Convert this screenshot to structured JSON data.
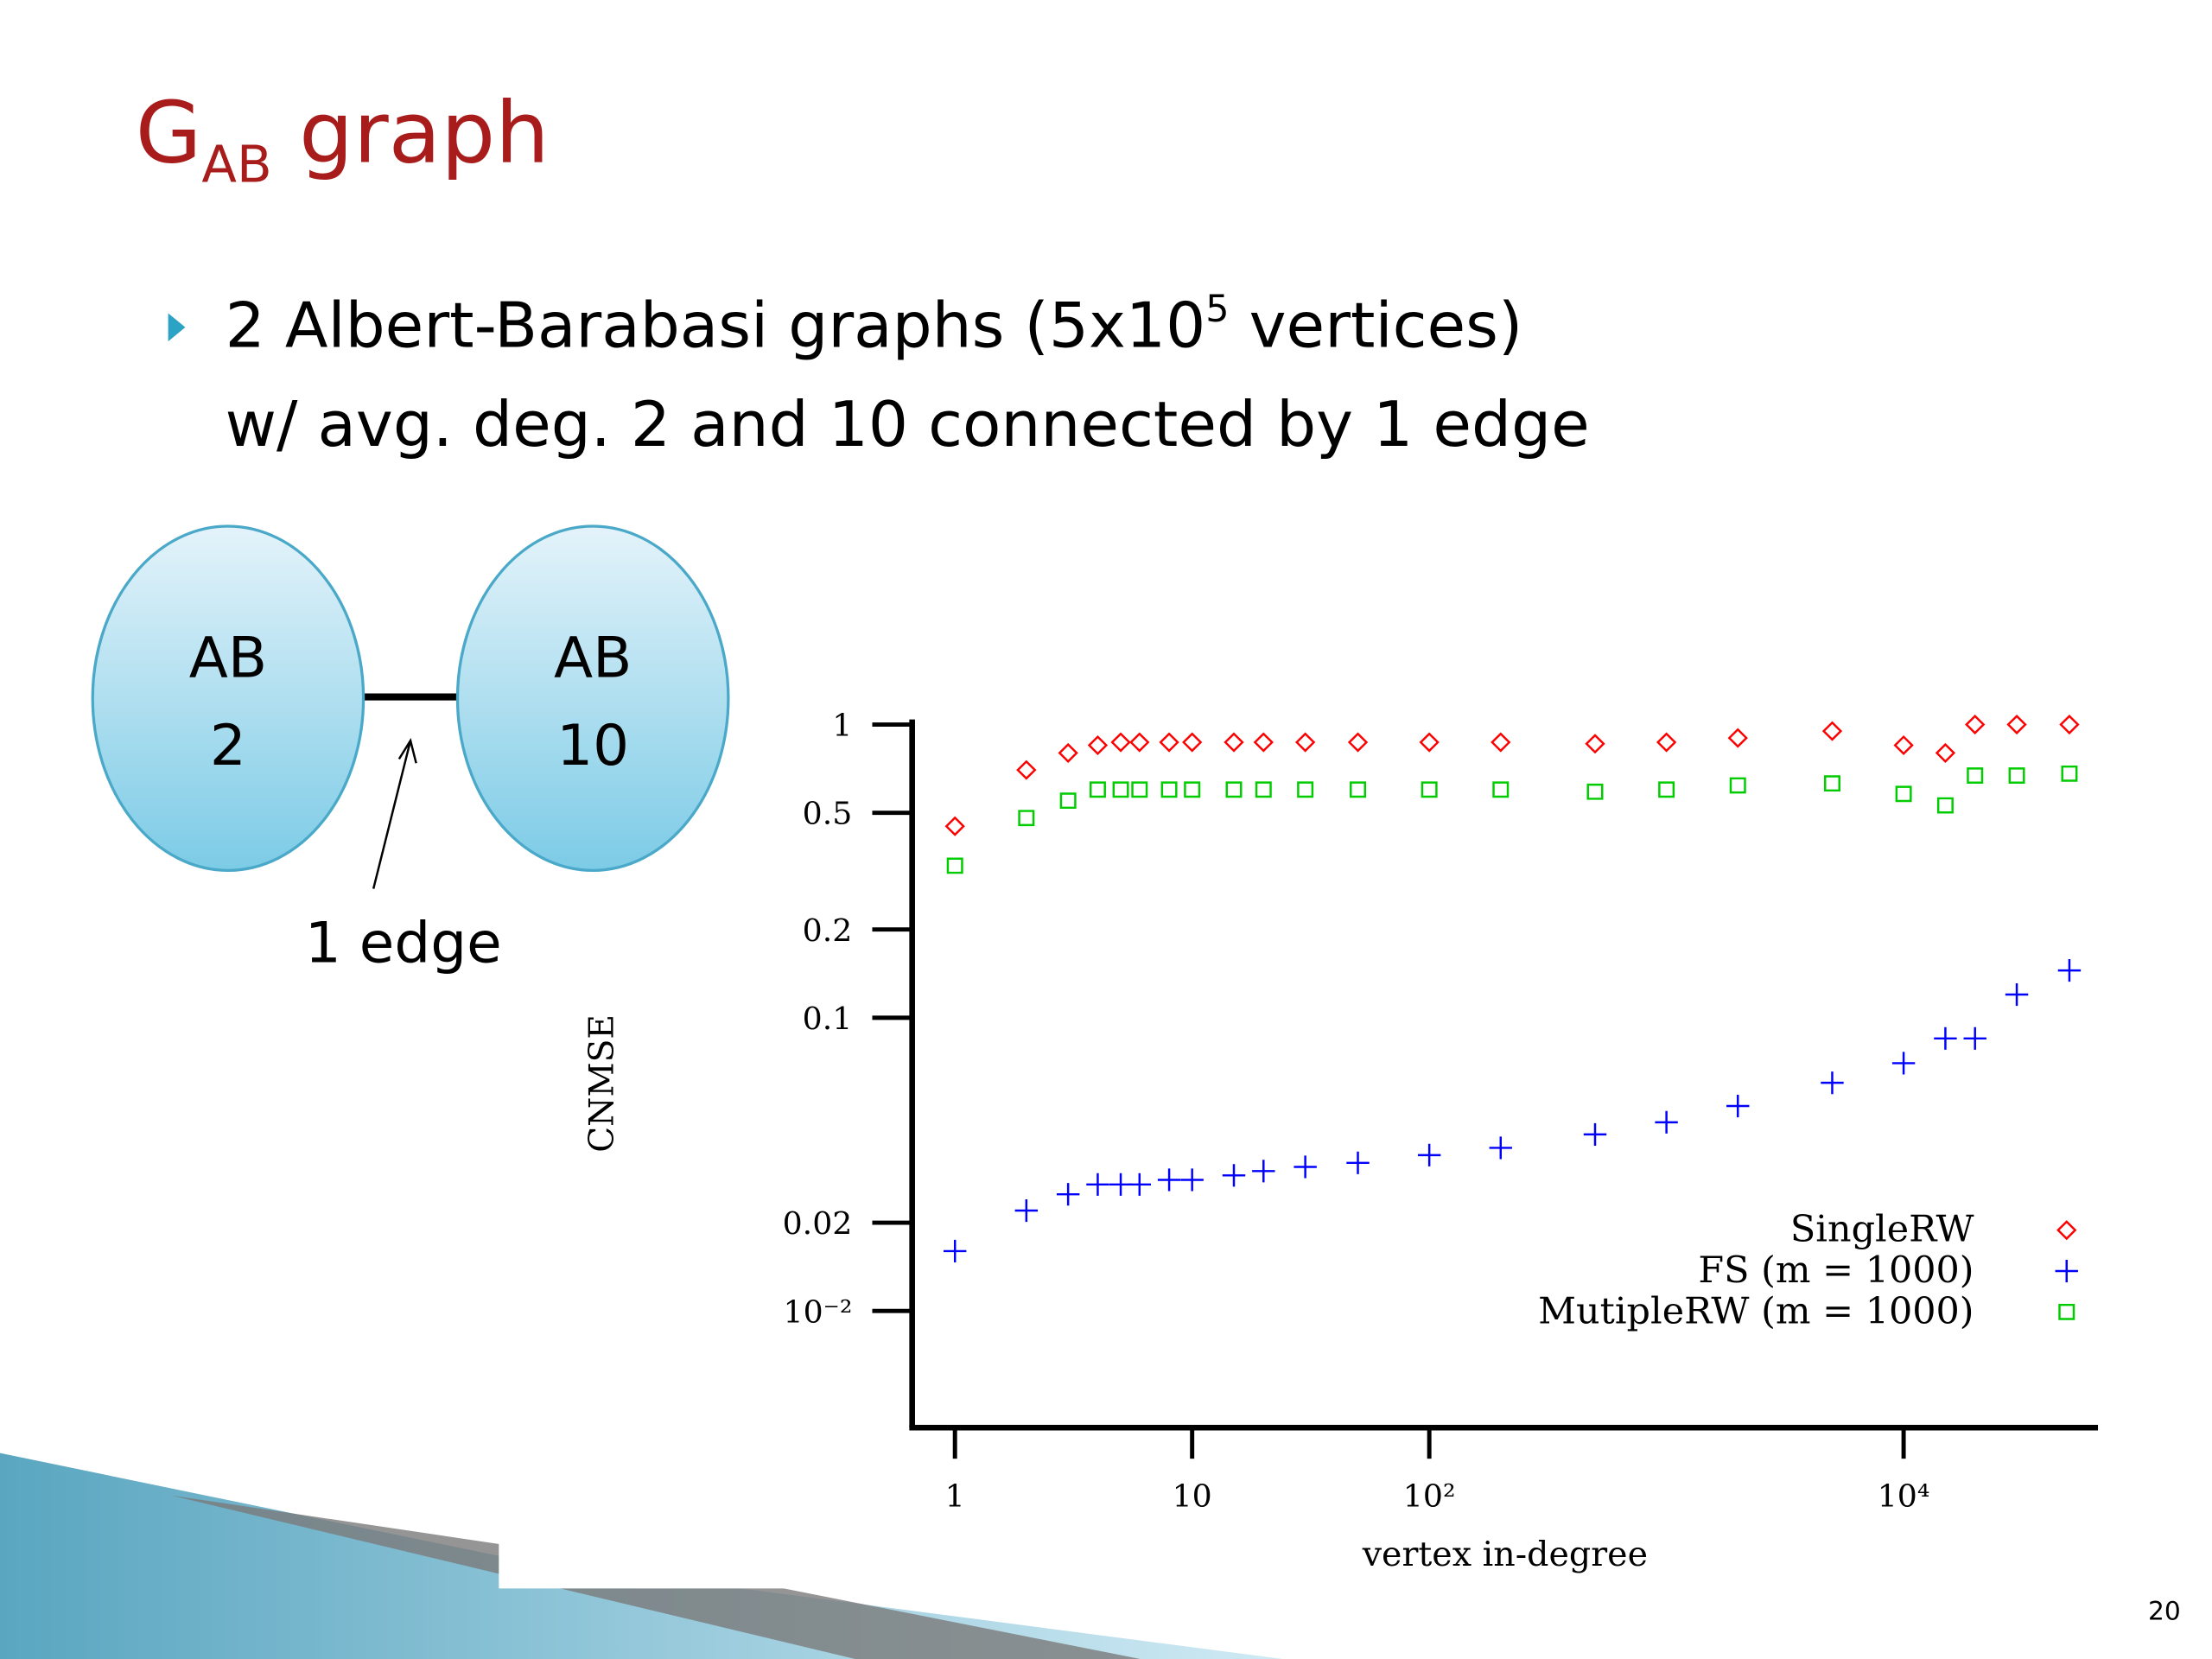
{
  "slide": {
    "title": {
      "main": "G",
      "subscript": "AB",
      "rest": " graph"
    },
    "bullet": {
      "line1_start": "2 Albert-Barabasi graphs (5x10",
      "line1_sup": "5",
      "line1_end": " vertices)",
      "line2": "w/ avg. deg. 2 and 10 connected by 1 edge"
    },
    "diagram": {
      "left": [
        "AB",
        "2"
      ],
      "right": [
        "AB",
        "10"
      ],
      "edge_label": "1 edge"
    },
    "page_number": "20"
  },
  "chart_data": {
    "type": "scatter",
    "x_label": "vertex in-degree",
    "y_label": "CNMSE",
    "x": [
      1,
      2,
      3,
      4,
      5,
      6,
      8,
      10,
      15,
      20,
      30,
      50,
      100,
      200,
      500,
      1000,
      2000,
      5000,
      10000,
      15000,
      20000,
      30000,
      50000
    ],
    "series": [
      {
        "name": "SingleRW",
        "color": "#ff0000",
        "marker": "diamond",
        "values": [
          0.45,
          0.7,
          0.8,
          0.85,
          0.87,
          0.87,
          0.87,
          0.87,
          0.87,
          0.87,
          0.87,
          0.87,
          0.87,
          0.87,
          0.86,
          0.87,
          0.9,
          0.95,
          0.85,
          0.8,
          1.0,
          1.0,
          1.0
        ]
      },
      {
        "name": "FS (m = 1000)",
        "color": "#0000ff",
        "marker": "plus",
        "values": [
          0.016,
          0.022,
          0.025,
          0.027,
          0.027,
          0.027,
          0.028,
          0.028,
          0.029,
          0.03,
          0.031,
          0.032,
          0.034,
          0.036,
          0.04,
          0.044,
          0.05,
          0.06,
          0.07,
          0.085,
          0.085,
          0.12,
          0.145
        ]
      },
      {
        "name": "MutipleRW (m = 1000)",
        "color": "#00cc00",
        "marker": "square",
        "values": [
          0.33,
          0.48,
          0.55,
          0.6,
          0.6,
          0.6,
          0.6,
          0.6,
          0.6,
          0.6,
          0.6,
          0.6,
          0.6,
          0.6,
          0.59,
          0.6,
          0.62,
          0.63,
          0.58,
          0.53,
          0.67,
          0.67,
          0.68
        ]
      }
    ],
    "xscale": "log",
    "yscale": "log",
    "xlim": [
      0.66,
      66000
    ],
    "ylim": [
      0.004,
      1.1
    ],
    "xticks": [
      1,
      10,
      {
        "value": 100,
        "label": "10²"
      },
      {
        "value": 10000,
        "label": "10⁴"
      }
    ],
    "yticks": [
      1,
      0.5,
      0.2,
      0.1,
      0.02,
      {
        "value": 0.01,
        "label": "10⁻²"
      }
    ],
    "legend": "lower right"
  }
}
